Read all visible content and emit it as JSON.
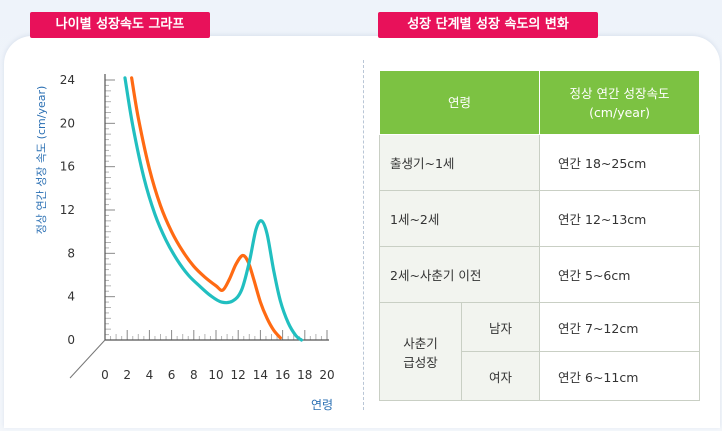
{
  "tabs": {
    "left": "나이별 성장속도 그라프",
    "right": "성장 단계별 성장 속도의 변화"
  },
  "table": {
    "header_age": "연령",
    "header_speed_line1": "정상 연간 성장속도",
    "header_speed_line2": "(cm/year)",
    "rows": [
      {
        "age": "출생기~1세",
        "speed": "연간 18~25cm"
      },
      {
        "age": "1세~2세",
        "speed": "연간 12~13cm"
      },
      {
        "age": "2세~사춘기 이전",
        "speed": "연간 5~6cm"
      }
    ],
    "puberty_label_line1": "사춘기",
    "puberty_label_line2": "급성장",
    "male_label": "남자",
    "male_speed": "연간 7~12cm",
    "female_label": "여자",
    "female_speed": "연간 6~11cm"
  },
  "chart_data": {
    "type": "line",
    "xlabel": "연령",
    "ylabel": "정상 연간 성장 속도 (cm/year)",
    "xlim": [
      0,
      20
    ],
    "ylim": [
      0,
      24
    ],
    "x_ticks": [
      0,
      2,
      4,
      6,
      8,
      10,
      12,
      14,
      16,
      18,
      20
    ],
    "y_ticks": [
      0,
      4,
      8,
      12,
      16,
      20,
      24
    ],
    "series": [
      {
        "color": "#ff6a13",
        "x": [
          2.4,
          3,
          4,
          5,
          6,
          7,
          8,
          9,
          10,
          10.6,
          11.2,
          11.8,
          12.4,
          12.9,
          13.4,
          14,
          14.6,
          15.2,
          15.8
        ],
        "y": [
          24.2,
          20.5,
          15.8,
          12.4,
          10,
          8.2,
          6.8,
          5.8,
          5,
          4.6,
          5.6,
          7,
          7.8,
          7.2,
          5.6,
          3.5,
          2,
          0.9,
          0.2
        ]
      },
      {
        "color": "#21bfc0",
        "x": [
          1.8,
          2.5,
          3.5,
          4.5,
          5.5,
          6.5,
          7.5,
          8.5,
          9.5,
          10.5,
          11.5,
          12.3,
          13,
          13.6,
          14.1,
          14.6,
          15.2,
          15.8,
          16.5,
          17.2,
          17.7
        ],
        "y": [
          24.2,
          19.8,
          15,
          11.6,
          9.2,
          7.4,
          6,
          5,
          4.1,
          3.5,
          3.6,
          4.6,
          7.2,
          10.2,
          11,
          9.8,
          6.4,
          3.6,
          1.6,
          0.4,
          0
        ]
      }
    ]
  }
}
